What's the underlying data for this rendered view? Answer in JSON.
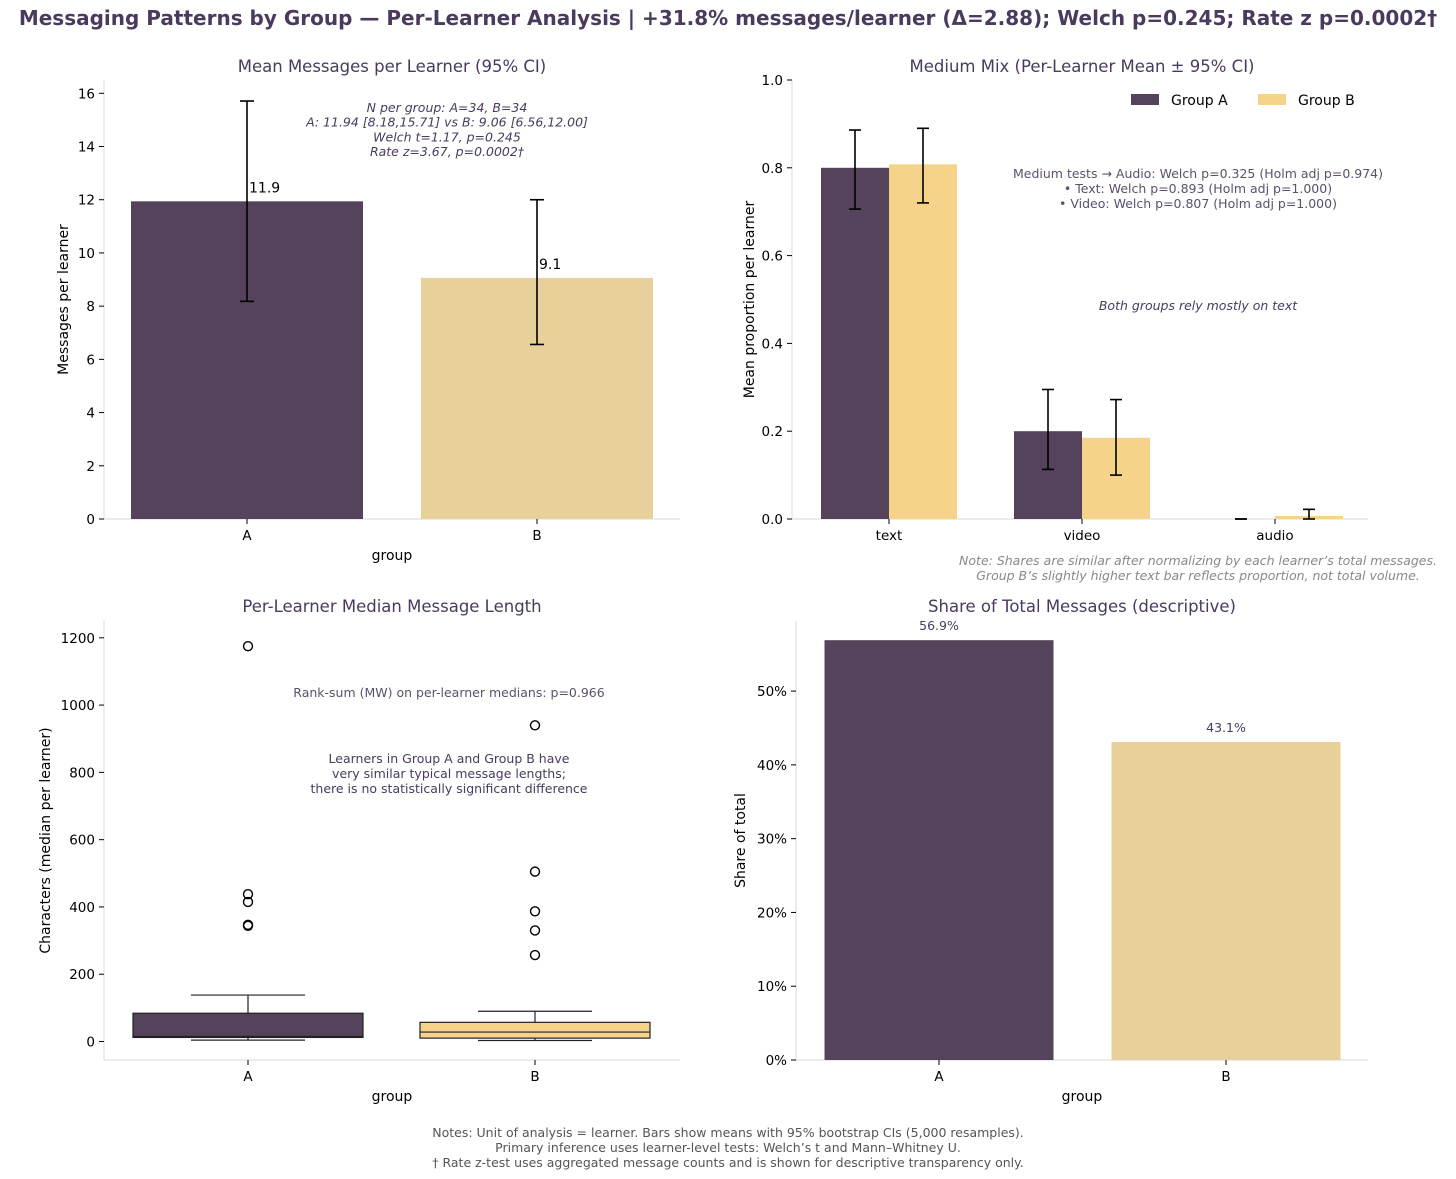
{
  "suptitle": "Messaging Patterns by Group — Per-Learner Analysis | +31.8% messages/learner (Δ=2.88); Welch p=0.245; Rate z p=0.0002†",
  "colors": {
    "groupA": "#54435a",
    "groupB_panel1": "#e8d09a",
    "groupB": "#f6d38a",
    "title": "#4a3a5e",
    "annot": "#5e4f6a",
    "note": "#888888"
  },
  "footer": {
    "lines": [
      "Notes: Unit of analysis = learner. Bars show means with 95% bootstrap CIs (5,000 resamples).",
      "Primary inference uses learner-level tests: Welch’s t and Mann–Whitney U.",
      "† Rate z-test uses aggregated message counts and is shown for descriptive transparency only."
    ]
  },
  "chart_data": [
    {
      "type": "bar",
      "title": "Mean Messages per Learner (95% CI)",
      "xlabel": "group",
      "ylabel": "Messages per learner",
      "categories": [
        "A",
        "B"
      ],
      "values": [
        11.94,
        9.06
      ],
      "ci_low": [
        8.18,
        6.56
      ],
      "ci_high": [
        15.71,
        12.0
      ],
      "value_labels": [
        "11.9",
        "9.1"
      ],
      "ylim": [
        0,
        16.5
      ],
      "yticks": [
        0,
        2,
        4,
        6,
        8,
        10,
        12,
        14,
        16
      ],
      "annotation": [
        "N per group: A=34, B=34",
        "A: 11.94 [8.18,15.71] vs B: 9.06 [6.56,12.00]",
        "Welch t=1.17, p=0.245",
        "Rate z=3.67, p=0.0002†"
      ]
    },
    {
      "type": "bar",
      "title": "Medium Mix (Per-Learner Mean ± 95% CI)",
      "ylabel": "Mean proportion per learner",
      "categories": [
        "text",
        "video",
        "audio"
      ],
      "series": [
        {
          "name": "Group A",
          "values": [
            0.8,
            0.2,
            0.0
          ],
          "ci_low": [
            0.706,
            0.113,
            0.0
          ],
          "ci_high": [
            0.886,
            0.295,
            0.0
          ]
        },
        {
          "name": "Group B",
          "values": [
            0.808,
            0.185,
            0.007
          ],
          "ci_low": [
            0.72,
            0.1,
            0.0
          ],
          "ci_high": [
            0.89,
            0.272,
            0.022
          ]
        }
      ],
      "ylim": [
        0,
        1.0
      ],
      "yticks": [
        "0.0",
        "0.2",
        "0.4",
        "0.6",
        "0.8",
        "1.0"
      ],
      "legend": "top-right",
      "tests": [
        "Medium tests → Audio: Welch p=0.325 (Holm adj p=0.974)",
        "• Text: Welch p=0.893 (Holm adj p=1.000)",
        "• Video: Welch p=0.807 (Holm adj p=1.000)"
      ],
      "annotation": "Both groups rely mostly on text",
      "note": [
        "Note: Shares are similar after normalizing by each learner’s total messages.",
        "Group B’s slightly higher text bar reflects proportion, not total volume."
      ]
    },
    {
      "type": "box",
      "title": "Per-Learner Median Message Length",
      "xlabel": "group",
      "ylabel": "Characters (median per learner)",
      "categories": [
        "A",
        "B"
      ],
      "boxes": [
        {
          "whisker_low": 4,
          "q1": 12,
          "median": 15,
          "q3": 84,
          "whisker_high": 138,
          "outliers": [
            1175,
            438,
            415,
            347,
            344
          ]
        },
        {
          "whisker_low": 3,
          "q1": 10,
          "median": 28,
          "q3": 57,
          "whisker_high": 90,
          "outliers": [
            940,
            505,
            387,
            330,
            257
          ]
        }
      ],
      "ylim": [
        -55,
        1250
      ],
      "yticks": [
        0,
        200,
        400,
        600,
        800,
        1000,
        1200
      ],
      "annotation_test": "Rank-sum (MW) on per-learner medians: p=0.966",
      "annotation": [
        "Learners in Group A and Group B have",
        "very similar typical message lengths;",
        "there is no statistically significant difference"
      ]
    },
    {
      "type": "bar",
      "title": "Share of Total Messages (descriptive)",
      "xlabel": "group",
      "ylabel": "Share of total",
      "categories": [
        "A",
        "B"
      ],
      "values": [
        56.9,
        43.1
      ],
      "value_labels": [
        "56.9%",
        "43.1%"
      ],
      "ylim": [
        0,
        59.5
      ],
      "yticks": [
        "0%",
        "10%",
        "20%",
        "30%",
        "40%",
        "50%"
      ]
    }
  ]
}
